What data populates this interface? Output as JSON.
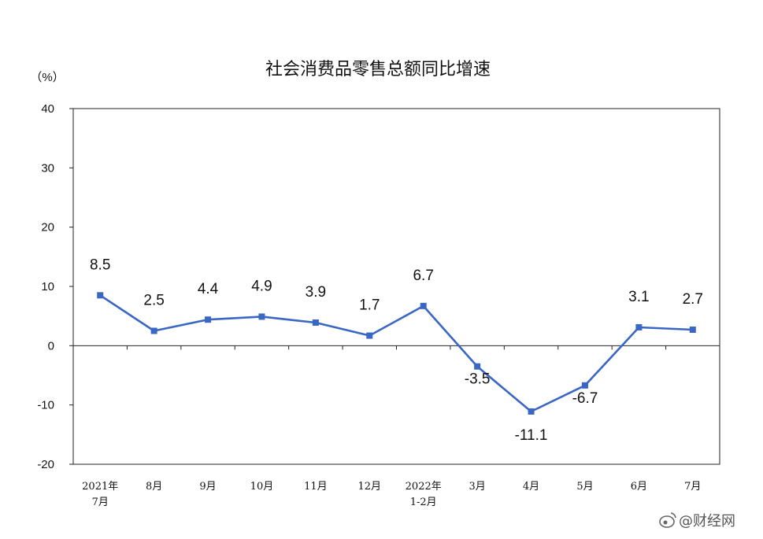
{
  "chart_data": {
    "type": "line",
    "title": "社会消费品零售总额同比增速",
    "unit_label": "（%）",
    "categories": [
      [
        "2021年",
        "7月"
      ],
      [
        "8月"
      ],
      [
        "9月"
      ],
      [
        "10月"
      ],
      [
        "11月"
      ],
      [
        "12月"
      ],
      [
        "2022年",
        "1-2月"
      ],
      [
        "3月"
      ],
      [
        "4月"
      ],
      [
        "5月"
      ],
      [
        "6月"
      ],
      [
        "7月"
      ]
    ],
    "values": [
      8.5,
      2.5,
      4.4,
      4.9,
      3.9,
      1.7,
      6.7,
      -3.5,
      -11.1,
      -6.7,
      3.1,
      2.7
    ],
    "data_labels": [
      "8.5",
      "2.5",
      "4.4",
      "4.9",
      "3.9",
      "1.7",
      "6.7",
      "-3.5",
      "-11.1",
      "-6.7",
      "3.1",
      "2.7"
    ],
    "ylim": [
      -20,
      40
    ],
    "yticks": [
      "40",
      "30",
      "20",
      "10",
      "0",
      "-10",
      "-20"
    ],
    "ytick_values": [
      40,
      30,
      20,
      10,
      0,
      -10,
      -20
    ],
    "grid": false,
    "legend": "none",
    "line_color": "#3A66C4",
    "marker": "square"
  },
  "watermark": {
    "icon": "weibo-icon",
    "text": "@财经网"
  }
}
